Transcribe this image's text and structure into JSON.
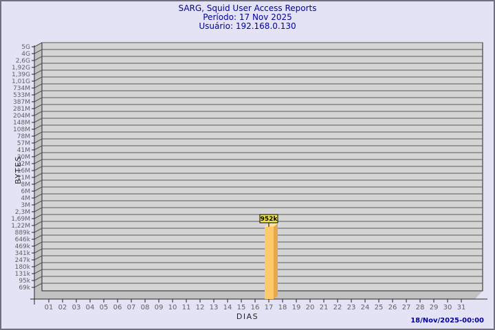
{
  "chart_data": {
    "type": "bar",
    "title": "SARG, Squid User Access Reports",
    "subtitle_period": "Período: 17 Nov 2025",
    "subtitle_user": "Usuário: 192.168.0.130",
    "xlabel": "DIAS",
    "ylabel": "BYTES",
    "y_scale": "log",
    "x_categories": [
      "01",
      "02",
      "03",
      "04",
      "05",
      "06",
      "07",
      "08",
      "09",
      "10",
      "11",
      "12",
      "13",
      "14",
      "15",
      "16",
      "17",
      "18",
      "19",
      "20",
      "21",
      "22",
      "23",
      "24",
      "25",
      "26",
      "27",
      "28",
      "29",
      "30",
      "31"
    ],
    "y_tick_labels_top_to_bottom": [
      "5G",
      "4G",
      "2,6G",
      "1,92G",
      "1,39G",
      "1,01G",
      "734M",
      "533M",
      "387M",
      "281M",
      "204M",
      "148M",
      "108M",
      "78M",
      "57M",
      "41M",
      "30M",
      "22M",
      "16M",
      "11M",
      "8M",
      "6M",
      "4M",
      "3M",
      "2,3M",
      "1,69M",
      "1,22M",
      "889k",
      "646k",
      "469k",
      "341k",
      "247k",
      "180k",
      "131k",
      "95k",
      "69k"
    ],
    "bars": [
      {
        "x": "17",
        "label": "952k",
        "value_bytes": 952000
      }
    ],
    "footer_datetime": "18/Nov/2025-00:00",
    "colors": {
      "page_bg": "#e3e3f5",
      "plot_bg": "#d5d5d5",
      "wall_bg": "#c2c2c2",
      "grid_line": "#565656",
      "axis_line": "#222222",
      "tick_text": "#5f5f5f",
      "title_text": "#000099",
      "bar_front": "#fdca6b",
      "bar_side": "#e6a84f",
      "bar_top": "#ffe296",
      "bar_label_bg": "#f2e63e",
      "bar_label_border": "#000000"
    }
  }
}
